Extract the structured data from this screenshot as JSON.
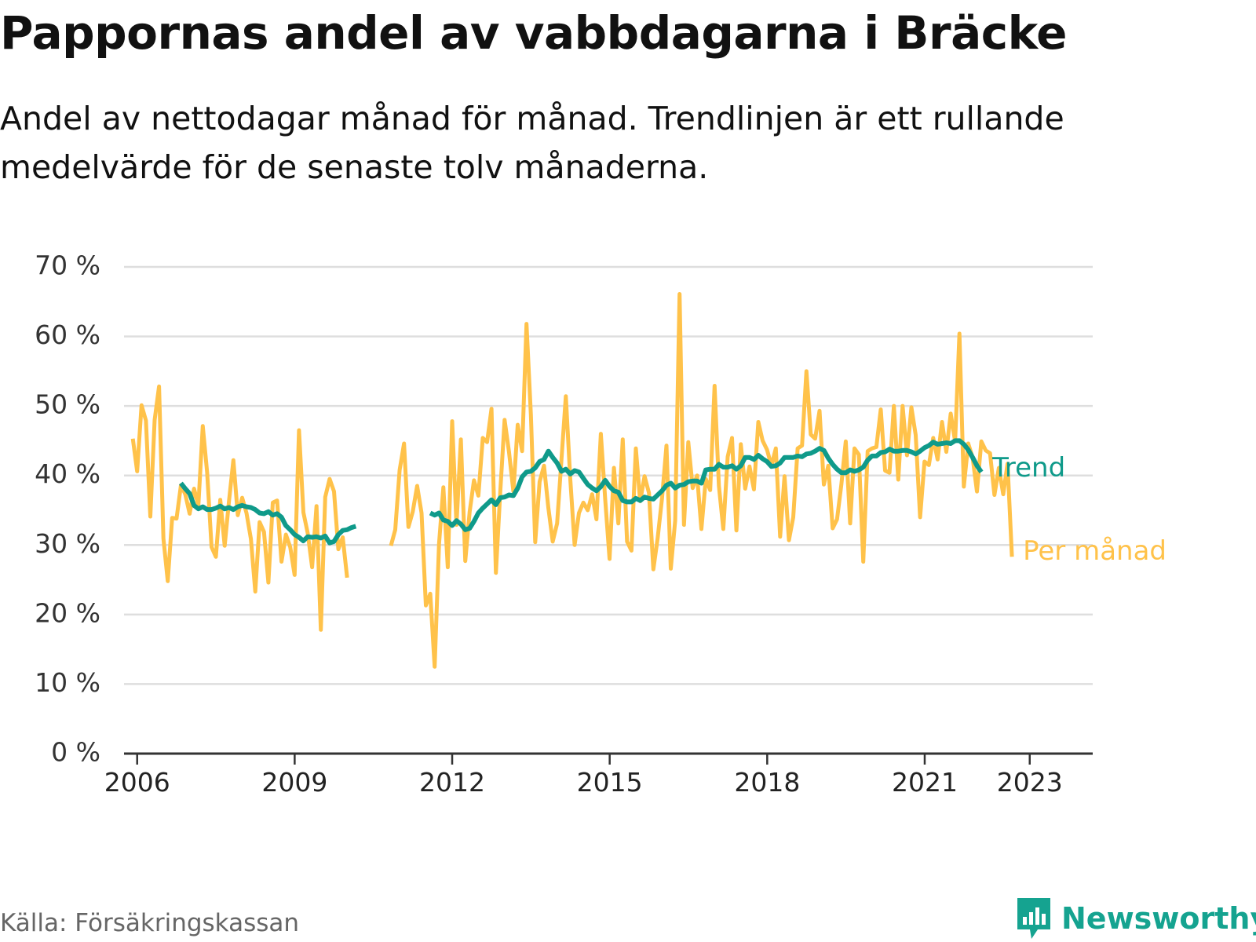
{
  "title": "Pappornas andel av vabbdagarna i Bräcke",
  "subtitle": "Andel av nettodagar månad för månad. Trendlinjen är ett rullande medelvärde för de senaste tolv månaderna.",
  "source": "Källa: Försäkringskassan",
  "brand": "Newsworthy",
  "colors": {
    "monthly": "#ffc24a",
    "trend": "#0f9a8a",
    "grid": "#dedede",
    "axis": "#333333",
    "brand": "#15a390"
  },
  "chart_data": {
    "type": "line",
    "title": "Pappornas andel av vabbdagarna i Bräcke",
    "xlabel": "",
    "ylabel": "",
    "y_unit": "%",
    "ylim": [
      0,
      70
    ],
    "y_ticks": [
      0,
      10,
      20,
      30,
      40,
      50,
      60,
      70
    ],
    "y_tick_labels": [
      "0 %",
      "10 %",
      "20 %",
      "30 %",
      "40 %",
      "50 %",
      "60 %",
      "70 %"
    ],
    "xlim": [
      2005.75,
      2024.2
    ],
    "x_ticks": [
      2006,
      2009,
      2012,
      2015,
      2018,
      2021,
      2023
    ],
    "x_tick_labels": [
      "2006",
      "2009",
      "2012",
      "2015",
      "2018",
      "2021",
      "2023"
    ],
    "legend": "inline labels at line ends (right)",
    "grid": true,
    "series": [
      {
        "name": "Per månad",
        "color": "#ffc24a",
        "segments": [
          {
            "start": 2005.917,
            "step": 0.0833,
            "values": [
              45.3,
              40.6,
              50.1,
              47.9,
              34.1,
              48.0,
              52.8,
              30.9,
              24.8,
              33.9,
              33.8,
              38.6,
              37.3,
              34.5,
              38.1,
              35.7,
              47.1,
              40.4,
              29.7,
              28.3,
              36.5,
              29.9,
              36.3,
              42.2,
              34.3,
              36.8,
              34.6,
              30.9,
              23.3,
              33.3,
              31.9,
              24.6,
              36.1,
              36.4,
              27.6,
              31.5,
              29.7,
              25.7,
              46.5,
              34.7,
              31.7,
              26.8,
              35.6,
              17.8,
              36.9,
              39.5,
              37.7,
              29.4,
              31.1,
              25.3
            ]
          },
          {
            "start": 2010.833,
            "step": 0.0833,
            "values": [
              29.9,
              32.2,
              40.8,
              44.6,
              32.6,
              34.8,
              38.5,
              34.6,
              21.3,
              23.0,
              12.5,
              30.2,
              38.3,
              26.8,
              47.8,
              32.9,
              45.2,
              27.7,
              34.8,
              39.3,
              37.1,
              45.4,
              44.8,
              49.6,
              26.0,
              37.7,
              48.0,
              43.4,
              37.7,
              47.3,
              43.5,
              61.8,
              48.7,
              30.4,
              39.1,
              41.4,
              35.4,
              30.5,
              33.1,
              42.4,
              51.4,
              39.6,
              30.0,
              34.6,
              36.1,
              35.0,
              37.3,
              33.7,
              46.0,
              36.5,
              28.0,
              41.1,
              33.1,
              45.2,
              30.5,
              29.2,
              43.9,
              36.3,
              39.9,
              37.5,
              26.5,
              31.0,
              36.8,
              44.3,
              26.6,
              33.5,
              66.1,
              32.9,
              44.8,
              38.2,
              40.0,
              32.3,
              39.5,
              37.9,
              52.9,
              38.5,
              32.3,
              42.7,
              45.4,
              32.1,
              44.5,
              38.1,
              41.3,
              38.0,
              47.7,
              45.0,
              43.7,
              41.4,
              43.9,
              31.2,
              39.9,
              30.7,
              34.0,
              43.9,
              44.3,
              55.0,
              45.9,
              45.3,
              49.3,
              38.7,
              41.4,
              32.4,
              33.7,
              38.7,
              44.9,
              33.1,
              43.9,
              43.0,
              27.6,
              43.5,
              43.9,
              44.1,
              49.5,
              40.7,
              40.4,
              50.0,
              39.4,
              50.0,
              42.9,
              49.8,
              45.8,
              34.0,
              42.0,
              41.5,
              45.4,
              42.3,
              47.7,
              43.4,
              48.9,
              44.9,
              60.4,
              38.4,
              44.6,
              42.6,
              37.7,
              44.9,
              43.6,
              43.2,
              37.2,
              41.1,
              37.3,
              41.7,
              28.3
            ]
          }
        ]
      },
      {
        "name": "Trend",
        "color": "#0f9a8a",
        "segments": [
          {
            "start": 2006.833,
            "step": 0.0833,
            "values": [
              38.9,
              38.1,
              37.4,
              35.7,
              35.2,
              35.5,
              35.1,
              35.1,
              35.3,
              35.6,
              35.2,
              35.4,
              35.1,
              35.5,
              35.7,
              35.5,
              35.4,
              35.1,
              34.6,
              34.5,
              34.8,
              34.3,
              34.5,
              34.0,
              32.8,
              32.2,
              31.5,
              31.1,
              30.6,
              31.2,
              31.1,
              31.2,
              31.0,
              31.3,
              30.3,
              30.5,
              31.5,
              32.1,
              32.2,
              32.5,
              32.7
            ]
          },
          {
            "start": 2011.583,
            "step": 0.0833,
            "values": [
              34.6,
              34.3,
              34.6,
              33.6,
              33.4,
              32.8,
              33.5,
              33.0,
              32.2,
              32.4,
              33.4,
              34.6,
              35.3,
              35.9,
              36.5,
              35.8,
              36.8,
              36.9,
              37.2,
              37.1,
              38.2,
              39.8,
              40.5,
              40.6,
              41.1,
              42.0,
              42.3,
              43.5,
              42.6,
              41.8,
              40.6,
              40.9,
              40.2,
              40.7,
              40.5,
              39.6,
              38.7,
              38.2,
              37.8,
              38.4,
              39.3,
              38.4,
              37.8,
              37.6,
              36.4,
              36.2,
              36.2,
              36.7,
              36.4,
              36.9,
              36.7,
              36.6,
              37.2,
              37.8,
              38.6,
              38.9,
              38.2,
              38.6,
              38.7,
              39.1,
              39.2,
              39.2,
              38.9,
              40.8,
              40.9,
              40.9,
              41.6,
              41.2,
              41.2,
              41.4,
              40.9,
              41.4,
              42.6,
              42.6,
              42.3,
              42.9,
              42.4,
              42.0,
              41.3,
              41.4,
              41.8,
              42.6,
              42.6,
              42.6,
              42.8,
              42.7,
              43.1,
              43.2,
              43.5,
              43.9,
              43.6,
              42.5,
              41.6,
              40.9,
              40.4,
              40.4,
              40.8,
              40.6,
              40.8,
              41.2,
              42.2,
              42.8,
              42.8,
              43.3,
              43.4,
              43.8,
              43.5,
              43.5,
              43.6,
              43.6,
              43.4,
              43.1,
              43.5,
              44.0,
              44.3,
              44.8,
              44.5,
              44.6,
              44.7,
              44.6,
              45.0,
              45.0,
              44.5,
              43.7,
              42.6,
              41.4,
              40.5
            ]
          }
        ]
      }
    ]
  }
}
